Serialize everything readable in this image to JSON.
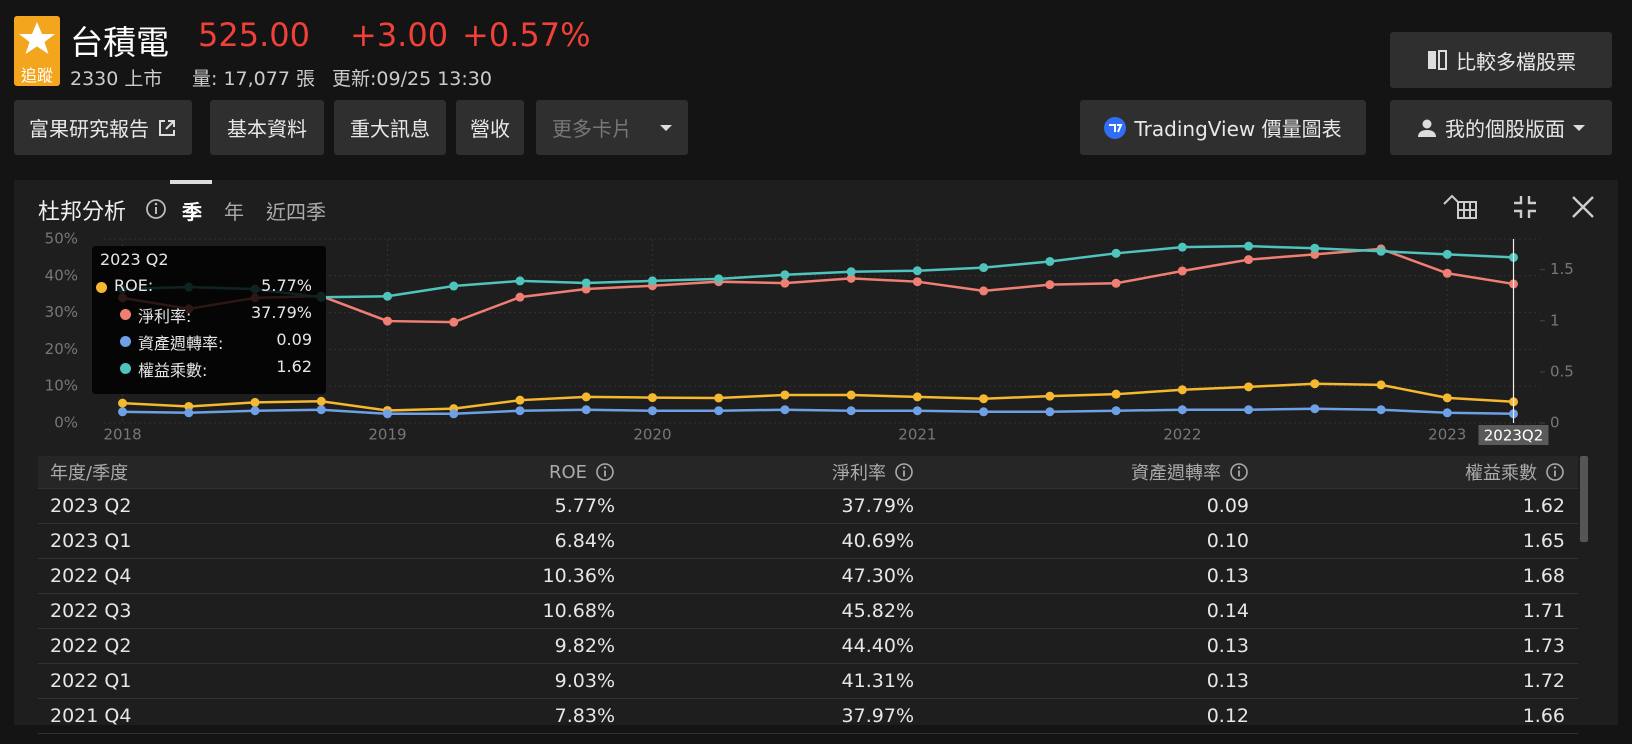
{
  "header": {
    "badge": "追蹤",
    "name": "台積電",
    "price": "525.00",
    "change": "+3.00",
    "change_pct": "+0.57%",
    "code": "2330 上市",
    "volume": "量: 17,077 張",
    "updated": "更新:09/25 13:30"
  },
  "buttons": {
    "compare": "比較多檔股票",
    "nav": [
      "富果研究報告",
      "基本資料",
      "重大訊息",
      "營收",
      "更多卡片"
    ],
    "tradingview": "TradingView 價量圖表",
    "layout": "我的個股版面"
  },
  "panel": {
    "title": "杜邦分析",
    "tabs": [
      "季",
      "年",
      "近四季"
    ]
  },
  "chart_data": {
    "type": "line",
    "x": [
      2018,
      2018.25,
      2018.5,
      2018.75,
      2019,
      2019.25,
      2019.5,
      2019.75,
      2020,
      2020.25,
      2020.5,
      2020.75,
      2021,
      2021.25,
      2021.5,
      2021.75,
      2022,
      2022.25,
      2022.5,
      2022.75,
      2023,
      2023.25
    ],
    "xlim": [
      2017.93,
      2023.35
    ],
    "xticks": [
      2018,
      2019,
      2020,
      2021,
      2022,
      2023
    ],
    "ylim": [
      0,
      50
    ],
    "yticks": [
      {
        "value": 0,
        "label": "0%"
      },
      {
        "value": 10,
        "label": "10%"
      },
      {
        "value": 20,
        "label": "20%"
      },
      {
        "value": 30,
        "label": "30%"
      },
      {
        "value": 40,
        "label": "40%"
      },
      {
        "value": 50,
        "label": "50%"
      }
    ],
    "y2lim": [
      0,
      1.8
    ],
    "y2ticks": [
      0,
      0.5,
      1,
      1.5
    ],
    "grid": true,
    "series": [
      {
        "name": "ROE",
        "color": "#f5b82e",
        "values": [
          5.4,
          4.5,
          5.6,
          5.9,
          3.4,
          3.9,
          6.2,
          7.1,
          6.9,
          6.8,
          7.6,
          7.6,
          7.1,
          6.6,
          7.3,
          7.83,
          9.03,
          9.82,
          10.68,
          10.36,
          6.84,
          5.77
        ]
      },
      {
        "name": "淨利率",
        "color": "#f07f73",
        "values": [
          34,
          31,
          34,
          34.5,
          27.7,
          27.4,
          34.2,
          36.4,
          37.3,
          38.4,
          38,
          39.3,
          38.4,
          35.9,
          37.6,
          37.97,
          41.31,
          44.4,
          45.82,
          47.3,
          40.69,
          37.79
        ]
      },
      {
        "name": "資產週轉率",
        "color": "#6ea0e6",
        "axis": "y2",
        "values": [
          0.11,
          0.1,
          0.12,
          0.13,
          0.09,
          0.09,
          0.12,
          0.13,
          0.12,
          0.12,
          0.13,
          0.12,
          0.12,
          0.11,
          0.11,
          0.12,
          0.13,
          0.13,
          0.14,
          0.13,
          0.1,
          0.09
        ]
      },
      {
        "name": "權益乘數",
        "color": "#4fc4bc",
        "axis": "y2",
        "values": [
          1.31,
          1.33,
          1.31,
          1.23,
          1.24,
          1.34,
          1.39,
          1.37,
          1.39,
          1.41,
          1.45,
          1.48,
          1.49,
          1.52,
          1.58,
          1.66,
          1.72,
          1.73,
          1.71,
          1.68,
          1.65,
          1.62
        ]
      }
    ]
  },
  "tooltip": {
    "title": "2023 Q2",
    "rows": [
      {
        "label": "ROE:",
        "value": "5.77%"
      },
      {
        "label": "淨利率:",
        "value": "37.79%"
      },
      {
        "label": "資產週轉率:",
        "value": "0.09"
      },
      {
        "label": "權益乘數:",
        "value": "1.62"
      }
    ]
  },
  "crosshair_label": "2023Q2",
  "table": {
    "first_header": "年度/季度",
    "rows": [
      [
        "2023 Q2",
        "5.77%",
        "37.79%",
        "0.09",
        "1.62"
      ],
      [
        "2023 Q1",
        "6.84%",
        "40.69%",
        "0.10",
        "1.65"
      ],
      [
        "2022 Q4",
        "10.36%",
        "47.30%",
        "0.13",
        "1.68"
      ],
      [
        "2022 Q3",
        "10.68%",
        "45.82%",
        "0.14",
        "1.71"
      ],
      [
        "2022 Q2",
        "9.82%",
        "44.40%",
        "0.13",
        "1.73"
      ],
      [
        "2022 Q1",
        "9.03%",
        "41.31%",
        "0.13",
        "1.72"
      ],
      [
        "2021 Q4",
        "7.83%",
        "37.97%",
        "0.12",
        "1.66"
      ]
    ]
  }
}
